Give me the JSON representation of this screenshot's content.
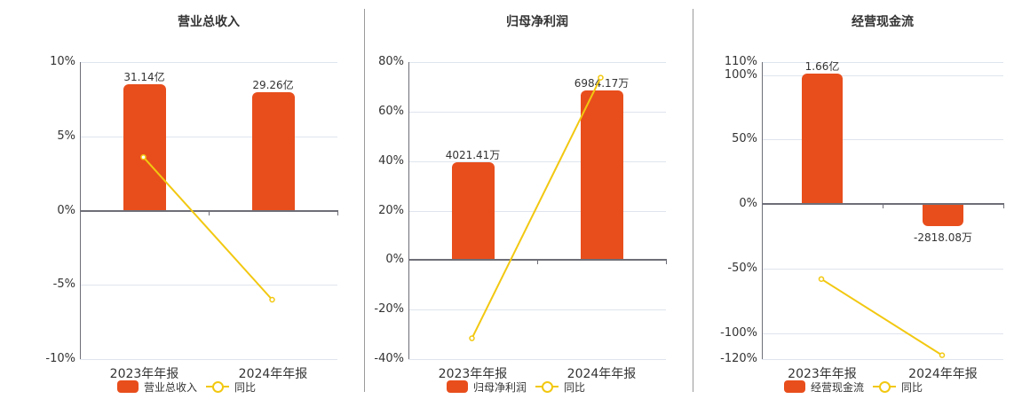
{
  "colors": {
    "bar": "#e84e1c",
    "line": "#f2c811",
    "grid": "#dfe5ee",
    "axis": "#6e6e78"
  },
  "legend_common": {
    "yoy_label": "同比"
  },
  "chart_data": [
    {
      "type": "bar",
      "title": "营业总收入",
      "categories": [
        "2023年年报",
        "2024年年报"
      ],
      "series": [
        {
          "name": "营业总收入",
          "type": "bar",
          "values": [
            31.14,
            29.26
          ],
          "unit": "亿",
          "labels": [
            "31.14亿",
            "29.26亿"
          ],
          "bar_pct_values": [
            8.5,
            8.0
          ]
        },
        {
          "name": "同比",
          "type": "line",
          "values": [
            3.6,
            -6.0
          ],
          "unit": "%"
        }
      ],
      "yticks": [
        "10%",
        "5%",
        "0%",
        "-5%",
        "-10%"
      ],
      "ylim": [
        -10,
        10
      ],
      "grid": true,
      "legend_position": "bottom"
    },
    {
      "type": "bar",
      "title": "归母净利润",
      "categories": [
        "2023年年报",
        "2024年年报"
      ],
      "series": [
        {
          "name": "归母净利润",
          "type": "bar",
          "values": [
            4021.41,
            6984.17
          ],
          "unit": "万",
          "labels": [
            "4021.41万",
            "6984.17万"
          ],
          "bar_pct_values": [
            39.5,
            68.5
          ]
        },
        {
          "name": "同比",
          "type": "line",
          "values": [
            -31.6,
            73.7
          ],
          "unit": "%"
        }
      ],
      "yticks": [
        "80%",
        "60%",
        "40%",
        "20%",
        "0%",
        "-20%",
        "-40%"
      ],
      "ylim": [
        -40,
        80
      ],
      "grid": true,
      "legend_position": "bottom"
    },
    {
      "type": "bar",
      "title": "经营现金流",
      "categories": [
        "2023年年报",
        "2024年年报"
      ],
      "series": [
        {
          "name": "经营现金流",
          "type": "bar",
          "values": [
            16600,
            -2818.08
          ],
          "unit": "万",
          "labels": [
            "1.66亿",
            "-2818.08万"
          ],
          "bar_pct_values": [
            101,
            -17
          ]
        },
        {
          "name": "同比",
          "type": "line",
          "values": [
            -58,
            -117
          ],
          "unit": "%"
        }
      ],
      "yticks": [
        "110%",
        "100%",
        "50%",
        "0%",
        "-50%",
        "-100%",
        "-120%"
      ],
      "ylim": [
        -120,
        110
      ],
      "grid": true,
      "legend_position": "bottom"
    }
  ]
}
